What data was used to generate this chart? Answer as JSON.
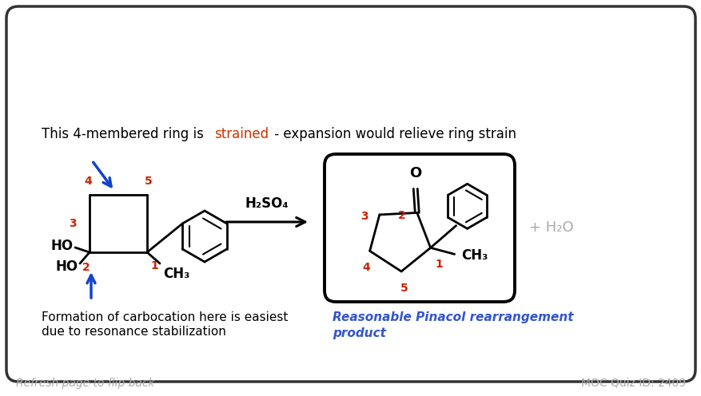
{
  "bg_color": "#ffffff",
  "border_color": "#333333",
  "title_text": "This 4-membered ring is ",
  "title_strained": "strained",
  "title_rest": " - expansion would relieve ring strain",
  "reagent": "H₂SO₄",
  "plus_water": "+ H₂O",
  "bottom_left_line1": "Formation of carbocation here is easiest",
  "bottom_left_line2": "due to resonance stabilization",
  "bottom_right_italic": "Reasonable Pinacol rearrangement",
  "bottom_right_italic2": "product",
  "footer_left": "Refresh page to flip back",
  "footer_right": "MOC Quiz ID: 2409",
  "strained_color": "#cc3300",
  "blue_arrow_color": "#1144cc",
  "red_number_color": "#cc2200",
  "product_label_color": "#3355cc",
  "footer_color": "#aaaaaa",
  "plus_water_color": "#aaaaaa",
  "lw": 2.0
}
